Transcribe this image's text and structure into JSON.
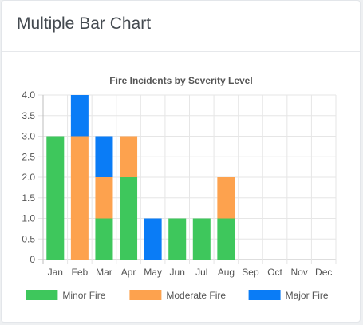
{
  "card": {
    "title": "Multiple Bar Chart"
  },
  "colors": {
    "minor": "#3ec75c",
    "moderate": "#fda24e",
    "major": "#0a7cf6"
  },
  "chart_data": {
    "type": "bar",
    "stacked": true,
    "title": "Fire Incidents by Severity Level",
    "categories": [
      "Jan",
      "Feb",
      "Mar",
      "Apr",
      "May",
      "Jun",
      "Jul",
      "Aug",
      "Sep",
      "Oct",
      "Nov",
      "Dec"
    ],
    "series": [
      {
        "name": "Minor Fire",
        "color": "#3ec75c",
        "values": [
          3,
          0,
          1,
          2,
          0,
          1,
          1,
          1,
          0,
          0,
          0,
          0
        ]
      },
      {
        "name": "Moderate Fire",
        "color": "#fda24e",
        "values": [
          0,
          3,
          1,
          1,
          0,
          0,
          0,
          1,
          0,
          0,
          0,
          0
        ]
      },
      {
        "name": "Major Fire",
        "color": "#0a7cf6",
        "values": [
          0,
          1,
          1,
          0,
          1,
          0,
          0,
          0,
          0,
          0,
          0,
          0
        ]
      }
    ],
    "ylim": [
      0,
      4
    ],
    "yticks": [
      "0",
      "0.5",
      "1.0",
      "1.5",
      "2.0",
      "2.5",
      "3.0",
      "3.5",
      "4.0"
    ],
    "grid": true,
    "legend": "bottom"
  }
}
